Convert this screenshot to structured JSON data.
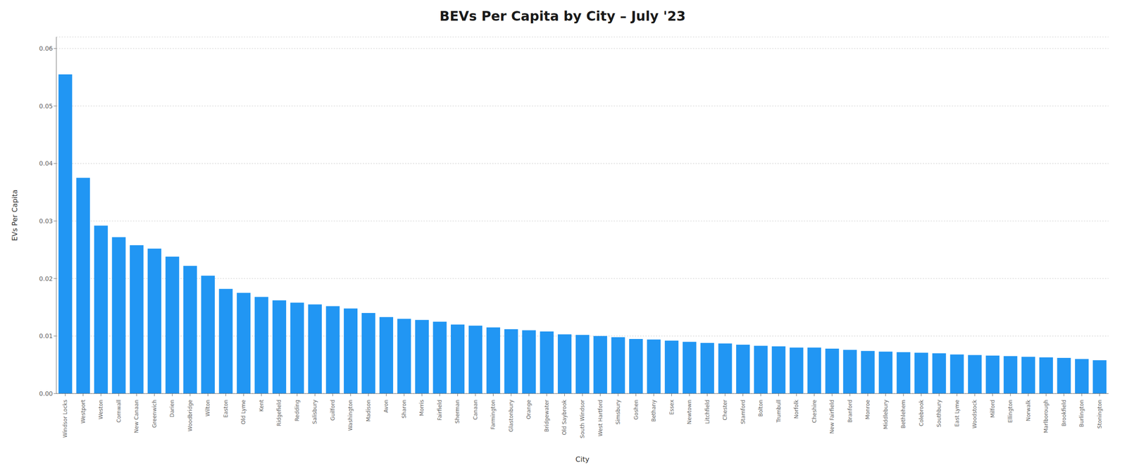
{
  "chart_data": {
    "type": "bar",
    "title": "BEVs Per Capita by City – July '23",
    "xlabel": "City",
    "ylabel": "EVs Per Capita",
    "color": "#2196F3",
    "grid": true,
    "ylim": [
      0,
      0.062
    ],
    "yticks": [
      {
        "value": 0,
        "label": "0.00"
      },
      0.01,
      0.02,
      0.03,
      0.04,
      0.05,
      0.06
    ],
    "categories": [
      "Windsor Locks",
      "Westport",
      "Weston",
      "Cornwall",
      "New Canaan",
      "Greenwich",
      "Darien",
      "Woodbridge",
      "Wilton",
      "Easton",
      "Old Lyme",
      "Kent",
      "Ridgefield",
      "Redding",
      "Salisbury",
      "Guilford",
      "Washington",
      "Madison",
      "Avon",
      "Sharon",
      "Morris",
      "Fairfield",
      "Sherman",
      "Canaan",
      "Farmington",
      "Glastonbury",
      "Orange",
      "Bridgewater",
      "Old Saybrook",
      "South Windsor",
      "West Hartford",
      "Simsbury",
      "Goshen",
      "Bethany",
      "Essex",
      "Newtown",
      "Litchfield",
      "Chester",
      "Stamford",
      "Bolton",
      "Trumbull",
      "Norfolk",
      "Cheshire",
      "New Fairfield",
      "Branford",
      "Monroe",
      "Middlebury",
      "Bethlehem",
      "Colebrook",
      "Southbury",
      "East Lyme",
      "Woodstock",
      "Milford",
      "Ellington",
      "Norwalk",
      "Marlborough",
      "Brookfield",
      "Burlington",
      "Stonington"
    ],
    "values": [
      0.0555,
      0.0375,
      0.0292,
      0.0272,
      0.0258,
      0.0252,
      0.0238,
      0.0222,
      0.0205,
      0.0182,
      0.0175,
      0.0168,
      0.0162,
      0.0158,
      0.0155,
      0.0152,
      0.0148,
      0.014,
      0.0133,
      0.013,
      0.0128,
      0.0125,
      0.012,
      0.0118,
      0.0115,
      0.0112,
      0.011,
      0.0108,
      0.0103,
      0.0102,
      0.01,
      0.0098,
      0.0095,
      0.0094,
      0.0092,
      0.009,
      0.0088,
      0.0087,
      0.0085,
      0.0083,
      0.0082,
      0.008,
      0.008,
      0.0078,
      0.0076,
      0.0074,
      0.0073,
      0.0072,
      0.0071,
      0.007,
      0.0068,
      0.0067,
      0.0066,
      0.0065,
      0.0064,
      0.0063,
      0.0062,
      0.006,
      0.0058
    ]
  }
}
